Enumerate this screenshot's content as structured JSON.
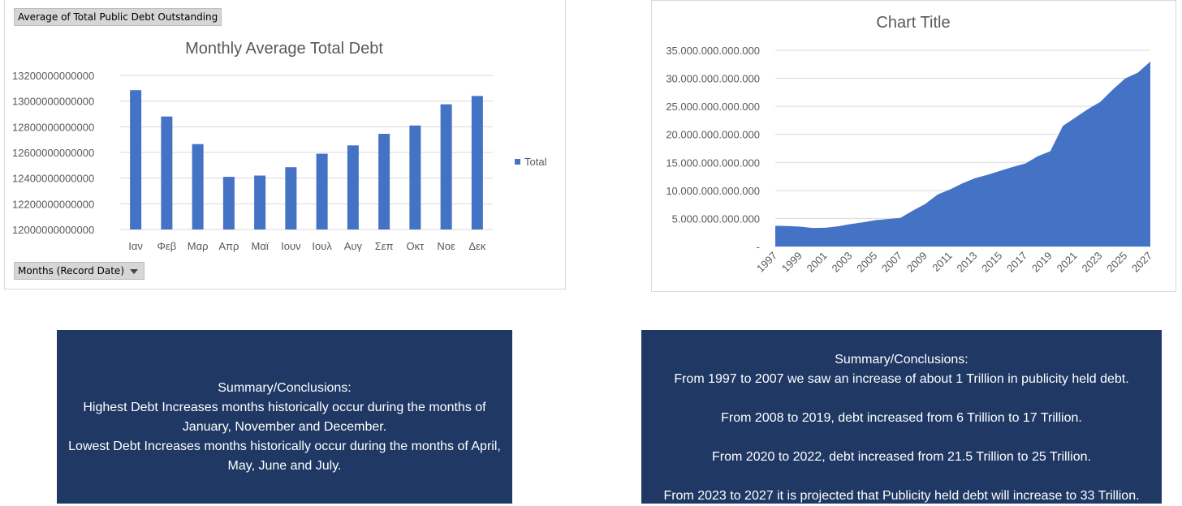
{
  "pivot_chart": {
    "value_field_button": "Average of Total Public Debt Outstanding",
    "axis_field_button": "Months (Record Date)"
  },
  "chart_data": [
    {
      "type": "bar",
      "title": "Monthly Average Total Debt",
      "categories": [
        "Ιαν",
        "Φεβ",
        "Μαρ",
        "Απρ",
        "Μαϊ",
        "Ιουν",
        "Ιουλ",
        "Αυγ",
        "Σεπ",
        "Οκτ",
        "Νοε",
        "Δεκ"
      ],
      "series": [
        {
          "name": "Total",
          "values": [
            13085000000000,
            12880000000000,
            12665000000000,
            12410000000000,
            12420000000000,
            12485000000000,
            12590000000000,
            12655000000000,
            12745000000000,
            12810000000000,
            12975000000000,
            13040000000000
          ]
        }
      ],
      "y_ticks": [
        12000000000000,
        12200000000000,
        12400000000000,
        12600000000000,
        12800000000000,
        13000000000000,
        13200000000000
      ],
      "y_tick_labels": [
        "12000000000000",
        "12200000000000",
        "12400000000000",
        "12600000000000",
        "12800000000000",
        "13000000000000",
        "13200000000000"
      ],
      "ylim": [
        12000000000000,
        13200000000000
      ],
      "legend": {
        "position": "right",
        "label": "Total"
      },
      "colors": {
        "bar": "#4472c4",
        "grid": "#d9d9d9",
        "text": "#595959"
      }
    },
    {
      "type": "area",
      "title": "Chart Title",
      "x": [
        1997,
        1998,
        1999,
        2000,
        2001,
        2002,
        2003,
        2004,
        2005,
        2006,
        2007,
        2008,
        2009,
        2010,
        2011,
        2012,
        2013,
        2014,
        2015,
        2016,
        2017,
        2018,
        2019,
        2020,
        2021,
        2022,
        2023,
        2024,
        2025,
        2026,
        2027
      ],
      "values": [
        3700000000000,
        3650000000000,
        3550000000000,
        3300000000000,
        3350000000000,
        3600000000000,
        4000000000000,
        4300000000000,
        4700000000000,
        4900000000000,
        5100000000000,
        6400000000000,
        7600000000000,
        9300000000000,
        10200000000000,
        11300000000000,
        12200000000000,
        12800000000000,
        13500000000000,
        14200000000000,
        14800000000000,
        16100000000000,
        17000000000000,
        21500000000000,
        23000000000000,
        24500000000000,
        25800000000000,
        28000000000000,
        30000000000000,
        31000000000000,
        33000000000000
      ],
      "x_tick_labels": [
        "1997",
        "1999",
        "2001",
        "2003",
        "2005",
        "2007",
        "2009",
        "2011",
        "2013",
        "2015",
        "2017",
        "2019",
        "2021",
        "2023",
        "2025",
        "2027"
      ],
      "y_ticks": [
        0,
        5000000000000,
        10000000000000,
        15000000000000,
        20000000000000,
        25000000000000,
        30000000000000,
        35000000000000
      ],
      "y_tick_labels": [
        "-",
        "5.000.000.000.000",
        "10.000.000.000.000",
        "15.000.000.000.000",
        "20.000.000.000.000",
        "25.000.000.000.000",
        "30.000.000.000.000",
        "35.000.000.000.000"
      ],
      "ylim": [
        0,
        35000000000000
      ],
      "colors": {
        "area": "#4472c4",
        "grid": "#d9d9d9",
        "text": "#595959"
      }
    }
  ],
  "summaries": {
    "left": {
      "heading": "Summary/Conclusions:",
      "line1": "Highest Debt Increases months historically occur during the months of January, November and December.",
      "line2": "Lowest Debt Increases months historically occur during the months of April, May, June and July."
    },
    "right": {
      "heading": "Summary/Conclusions:",
      "line1": "From 1997 to 2007 we saw an increase of about 1 Trillion in publicity held debt.",
      "line2": "From 2008 to 2019, debt increased from 6 Trillion to 17 Trillion.",
      "line3": "From 2020 to 2022, debt increased from 21.5 Trillion to 25 Trillion.",
      "line4": "From 2023 to 2027 it is projected that Publicity held debt will increase to 33 Trillion."
    }
  }
}
